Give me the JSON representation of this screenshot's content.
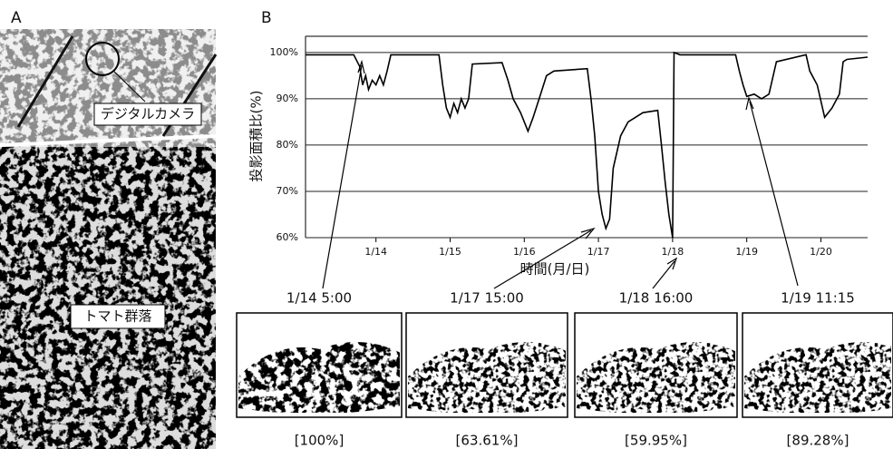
{
  "panels": {
    "a": "A",
    "b": "B"
  },
  "photo_labels": {
    "camera": "デジタルカメラ",
    "canopy": "トマト群落"
  },
  "snapshots": [
    {
      "time": "1/14 5:00",
      "ratio": "[100%]"
    },
    {
      "time": "1/17 15:00",
      "ratio": "[63.61%]"
    },
    {
      "time": "1/18 16:00",
      "ratio": "[59.95%]"
    },
    {
      "time": "1/19 11:15",
      "ratio": "[89.28%]"
    }
  ],
  "chart_data": {
    "type": "line",
    "color": "#000000",
    "y_label": "投影面積比(%)",
    "x_label": "時間(月/日)",
    "xlim": [
      13.05,
      20.63
    ],
    "ylim": [
      60,
      103.5
    ],
    "xticks": [
      {
        "value": 14,
        "label": "1/14"
      },
      {
        "value": 15,
        "label": "1/15"
      },
      {
        "value": 16,
        "label": "1/16"
      },
      {
        "value": 17,
        "label": "1/17"
      },
      {
        "value": 18,
        "label": "1/18"
      },
      {
        "value": 19,
        "label": "1/19"
      },
      {
        "value": 20,
        "label": "1/20"
      }
    ],
    "yticks": [
      {
        "value": 60,
        "label": "60%"
      },
      {
        "value": 70,
        "label": "70%"
      },
      {
        "value": 80,
        "label": "80%"
      },
      {
        "value": 90,
        "label": "90%"
      },
      {
        "value": 100,
        "label": "100%"
      }
    ],
    "grid": true,
    "x": [
      13.05,
      13.7,
      13.78,
      13.82,
      13.86,
      13.9,
      13.95,
      14.0,
      14.05,
      14.1,
      14.15,
      14.2,
      14.85,
      14.9,
      14.95,
      15.0,
      15.05,
      15.1,
      15.15,
      15.2,
      15.25,
      15.3,
      15.7,
      15.78,
      15.85,
      15.95,
      16.05,
      16.12,
      16.2,
      16.3,
      16.4,
      16.85,
      16.9,
      16.95,
      17.0,
      17.05,
      17.1,
      17.15,
      17.2,
      17.3,
      17.4,
      17.6,
      17.8,
      17.85,
      17.9,
      17.95,
      18.0,
      18.02,
      18.1,
      18.85,
      18.9,
      18.95,
      19.0,
      19.1,
      19.2,
      19.3,
      19.4,
      19.8,
      19.85,
      19.95,
      20.05,
      20.15,
      20.25,
      20.3,
      20.35,
      20.63
    ],
    "values": [
      99.5,
      99.5,
      97,
      93,
      95,
      92,
      94,
      93,
      95,
      93,
      96,
      99.5,
      99.5,
      93,
      88,
      86,
      89,
      87,
      90,
      88,
      90,
      97.5,
      97.8,
      94,
      90,
      87,
      83,
      86,
      90,
      95,
      96,
      96.5,
      90,
      82,
      70,
      65,
      62,
      64,
      75,
      82,
      85,
      87,
      87.5,
      80,
      72,
      65,
      60,
      100,
      99.5,
      99.5,
      96,
      93,
      90.5,
      91,
      90,
      91,
      98,
      99.5,
      96,
      93,
      86,
      88,
      91,
      98,
      98.5,
      99
    ]
  }
}
